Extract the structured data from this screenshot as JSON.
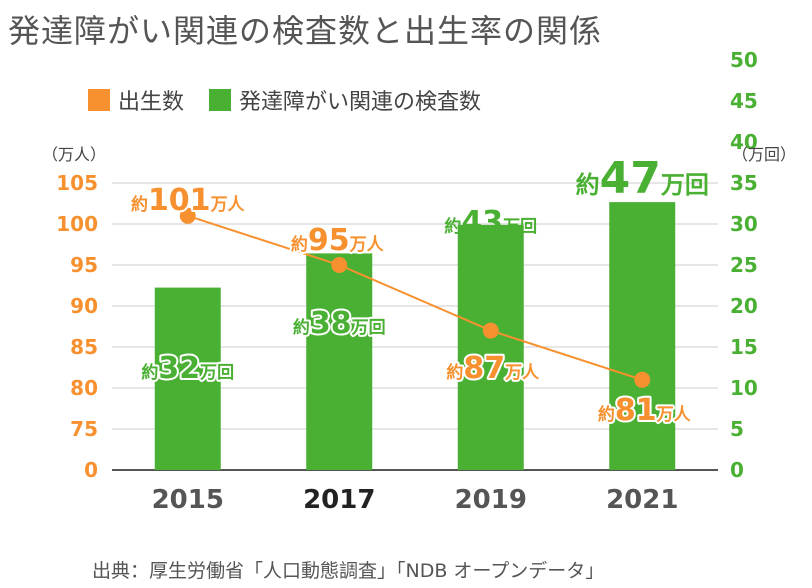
{
  "title": "発達障がい関連の検査数と出生率の関係",
  "colors": {
    "births": "#f7912f",
    "tests": "#4ab033",
    "axis_text_years": "#555555",
    "axis_text_highlight": "#222222"
  },
  "legend": [
    {
      "label": "出生数",
      "color": "#f7912f"
    },
    {
      "label": "発達障がい関連の検査数",
      "color": "#4ab033"
    }
  ],
  "source": "出典：厚生労働省「人口動態調査」「NDB オープンデータ」",
  "chart_data": {
    "type": "bar+line",
    "categories": [
      "2015",
      "2017",
      "2019",
      "2021"
    ],
    "highlight_category": "2017",
    "left_axis": {
      "unit": "（万人）",
      "ylim": [
        0,
        105
      ],
      "ticks": [
        "0",
        "75",
        "80",
        "85",
        "90",
        "95",
        "100",
        "105"
      ],
      "broken_between": [
        "0",
        "75"
      ],
      "color": "#f7912f"
    },
    "right_axis": {
      "unit": "（万回）",
      "ylim": [
        0,
        50
      ],
      "ticks": [
        "0",
        "5",
        "10",
        "15",
        "20",
        "25",
        "30",
        "35",
        "40",
        "45",
        "50"
      ],
      "color": "#4ab033"
    },
    "grid": true,
    "series": [
      {
        "name": "出生数",
        "kind": "line",
        "axis": "left",
        "values": [
          101,
          95,
          87,
          81
        ],
        "labels": [
          {
            "prefix": "約",
            "num": "101",
            "suffix": "万人"
          },
          {
            "prefix": "約",
            "num": "95",
            "suffix": "万人"
          },
          {
            "prefix": "約",
            "num": "87",
            "suffix": "万人"
          },
          {
            "prefix": "約",
            "num": "81",
            "suffix": "万人"
          }
        ]
      },
      {
        "name": "発達障がい関連の検査数",
        "kind": "bar",
        "axis": "right",
        "values": [
          32,
          38,
          43,
          47
        ],
        "labels": [
          {
            "prefix": "約",
            "num": "32",
            "suffix": "万回"
          },
          {
            "prefix": "約",
            "num": "38",
            "suffix": "万回"
          },
          {
            "prefix": "約",
            "num": "43",
            "suffix": "万回"
          },
          {
            "prefix": "約",
            "num": "47",
            "suffix": "万回"
          }
        ]
      }
    ]
  }
}
